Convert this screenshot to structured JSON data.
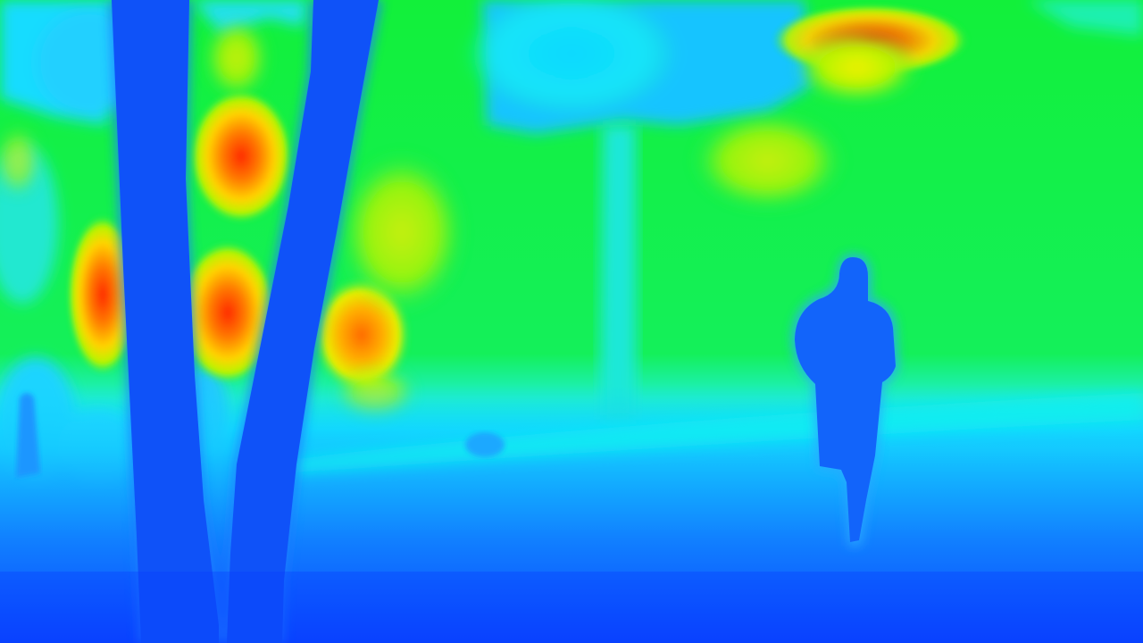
{
  "image": {
    "kind": "depth-map",
    "colormap": "jet",
    "description_colors": {
      "near": "#0a3cff",
      "mid_near": "#17b8ff",
      "mid": "#00ffff",
      "mid_far": "#00f43a",
      "far": "#ffe600",
      "farther": "#ff8c00",
      "farthest": "#ff2a00"
    }
  }
}
